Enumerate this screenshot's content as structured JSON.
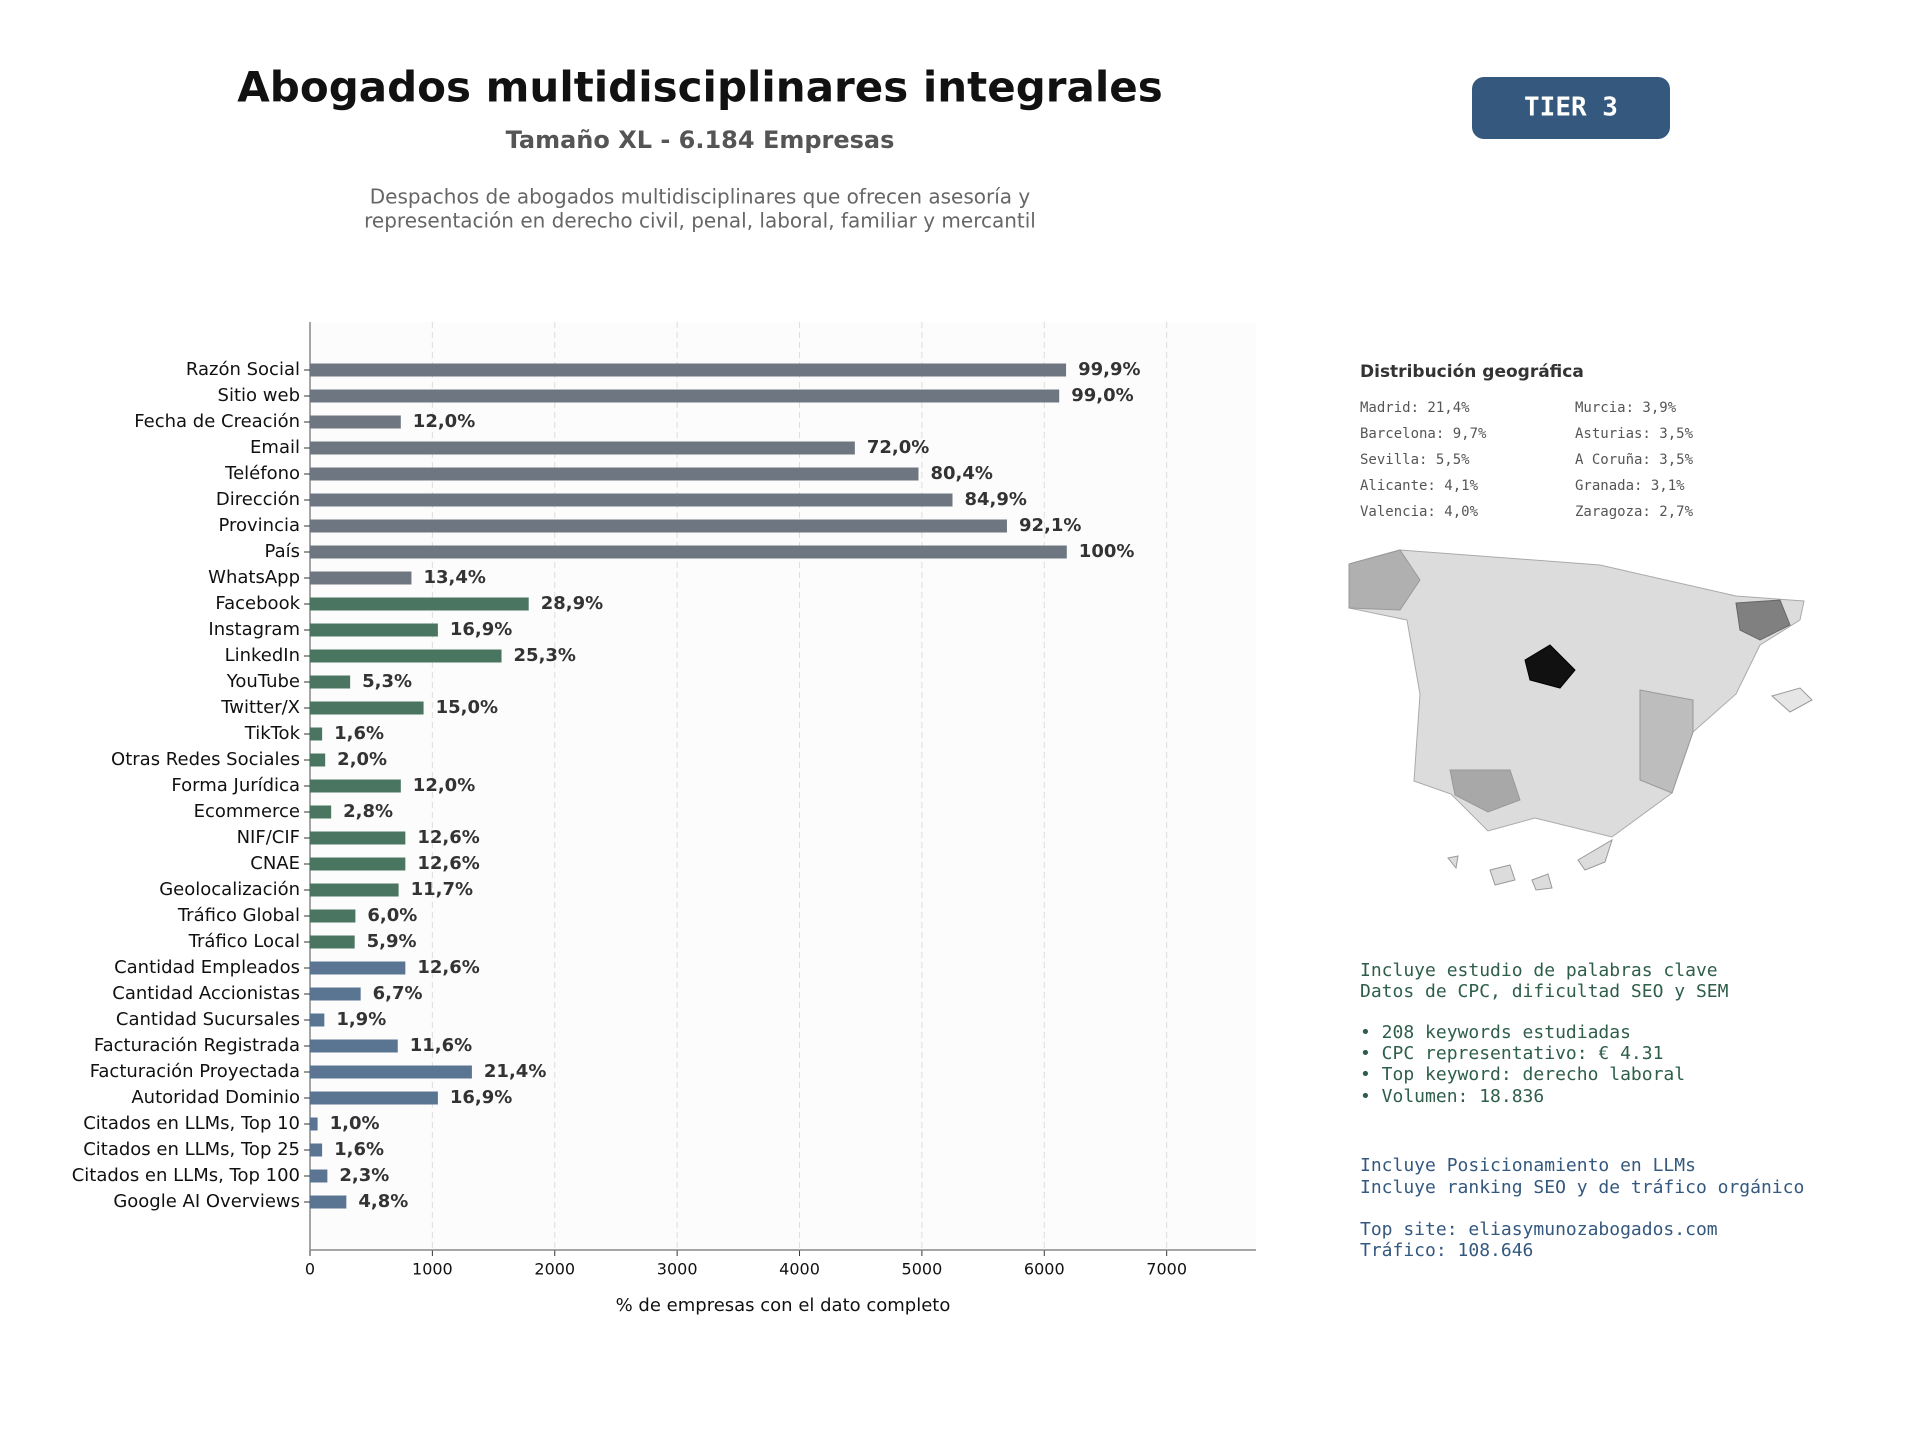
{
  "chart_data": {
    "type": "barh",
    "title": "Abogados multidisciplinares integrales",
    "subtitle": "Tamaño XL - 6.184 Empresas",
    "description": [
      "Despachos de abogados multidisciplinares que ofrecen asesoría y",
      "representación en derecho civil, penal, laboral, familiar y mercantil"
    ],
    "badge": "TIER 3",
    "xlabel": "% de empresas con el dato completo",
    "categories": [
      "Razón Social",
      "Sitio web",
      "Fecha de Creación",
      "Email",
      "Teléfono",
      "Dirección",
      "Provincia",
      "País",
      "WhatsApp",
      "Facebook",
      "Instagram",
      "LinkedIn",
      "YouTube",
      "Twitter/X",
      "TikTok",
      "Otras Redes Sociales",
      "Forma Jurídica",
      "Ecommerce",
      "NIF/CIF",
      "CNAE",
      "Geolocalización",
      "Tráfico Global",
      "Tráfico Local",
      "Cantidad Empleados",
      "Cantidad Accionistas",
      "Cantidad Sucursales",
      "Facturación Registrada",
      "Facturación Proyectada",
      "Autoridad Dominio",
      "Citados en LLMs, Top 10",
      "Citados en LLMs, Top 25",
      "Citados en LLMs, Top 100",
      "Google AI Overviews"
    ],
    "values": [
      6178,
      6122,
      742,
      4452,
      4972,
      5250,
      5695,
      6184,
      829,
      1787,
      1045,
      1565,
      328,
      928,
      99,
      124,
      742,
      173,
      779,
      779,
      724,
      371,
      365,
      779,
      414,
      117,
      717,
      1323,
      1045,
      62,
      99,
      142,
      297
    ],
    "value_labels": [
      "99,9%",
      "99,0%",
      "12,0%",
      "72,0%",
      "80,4%",
      "84,9%",
      "92,1%",
      "100%",
      "13,4%",
      "28,9%",
      "16,9%",
      "25,3%",
      "5,3%",
      "15,0%",
      "1,6%",
      "2,0%",
      "12,0%",
      "2,8%",
      "12,6%",
      "12,6%",
      "11,7%",
      "6,0%",
      "5,9%",
      "12,6%",
      "6,7%",
      "1,9%",
      "11,6%",
      "21,4%",
      "16,9%",
      "1,0%",
      "1,6%",
      "2,3%",
      "4,8%"
    ],
    "colors": [
      "#6e7781",
      "#6e7781",
      "#6e7781",
      "#6e7781",
      "#6e7781",
      "#6e7781",
      "#6e7781",
      "#6e7781",
      "#6e7781",
      "#4a7561",
      "#4a7561",
      "#4a7561",
      "#4a7561",
      "#4a7561",
      "#4a7561",
      "#4a7561",
      "#4a7561",
      "#4a7561",
      "#4a7561",
      "#4a7561",
      "#4a7561",
      "#4a7561",
      "#4a7561",
      "#5a7592",
      "#5a7592",
      "#5a7592",
      "#5a7592",
      "#5a7592",
      "#5a7592",
      "#5a7592",
      "#5a7592",
      "#5a7592",
      "#5a7592"
    ],
    "xlim": [
      0,
      7730
    ],
    "xticks": [
      0,
      1000,
      2000,
      3000,
      4000,
      5000,
      6000,
      7000
    ],
    "grid": true
  },
  "geo": {
    "title": "Distribución geográfica",
    "items": [
      "Madrid: 21,4%",
      "Barcelona: 9,7%",
      "Sevilla: 5,5%",
      "Alicante: 4,1%",
      "Valencia: 4,0%",
      "Murcia: 3,9%",
      "Asturias: 3,5%",
      "A Coruña: 3,5%",
      "Granada: 3,1%",
      "Zaragoza: 2,7%"
    ]
  },
  "keywords": {
    "lines": [
      "Incluye estudio de palabras clave",
      "Datos de CPC, dificultad SEO y SEM",
      "• 208 keywords estudiadas",
      "• CPC representativo: € 4.31",
      "• Top keyword: derecho laboral",
      "• Volumen: 18.836"
    ]
  },
  "llm": {
    "lines": [
      "Incluye Posicionamiento en LLMs",
      "Incluye ranking SEO y de tráfico orgánico",
      "Top site: eliasymunozabogados.com",
      "Tráfico: 108.646"
    ]
  }
}
